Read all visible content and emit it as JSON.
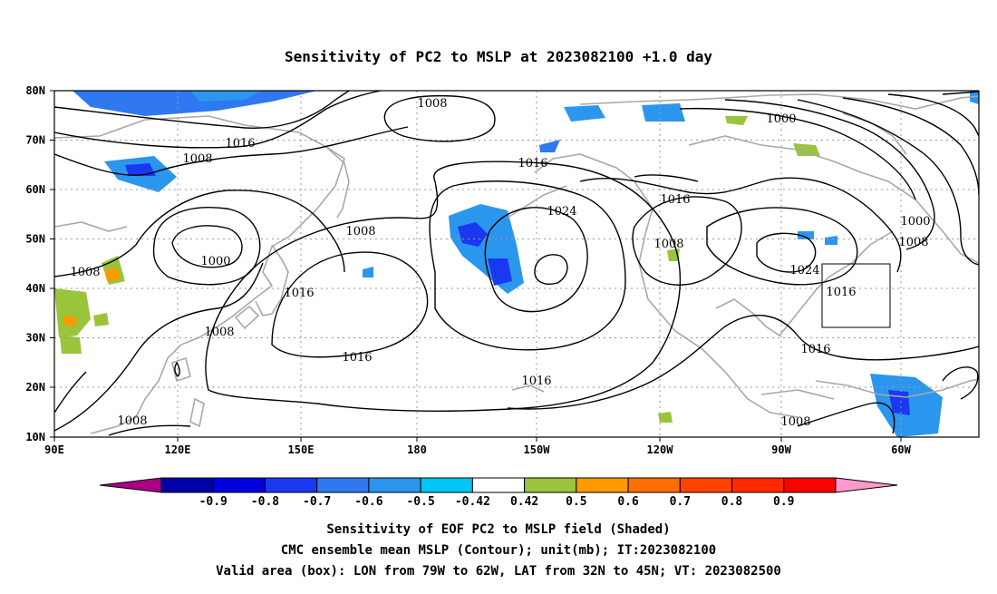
{
  "title": "Sensitivity of PC2 to MSLP at 2023082100 +1.0 day",
  "lat_labels": [
    "80N",
    "70N",
    "60N",
    "50N",
    "40N",
    "30N",
    "20N",
    "10N"
  ],
  "lon_labels": [
    "90E",
    "120E",
    "150E",
    "180",
    "150W",
    "120W",
    "90W",
    "60W"
  ],
  "contour_labels": [
    {
      "text": "1008"
    },
    {
      "text": "1016"
    },
    {
      "text": "1008"
    },
    {
      "text": "1000"
    },
    {
      "text": "1008"
    },
    {
      "text": "1016"
    },
    {
      "text": "1008"
    },
    {
      "text": "1008"
    },
    {
      "text": "1016"
    },
    {
      "text": "1024"
    },
    {
      "text": "1016"
    },
    {
      "text": "1016"
    },
    {
      "text": "1008"
    },
    {
      "text": "1016"
    },
    {
      "text": "1000"
    },
    {
      "text": "1000"
    },
    {
      "text": "1008"
    },
    {
      "text": "1008"
    },
    {
      "text": "1024"
    },
    {
      "text": "1016"
    },
    {
      "text": "1016"
    },
    {
      "text": "1008"
    },
    {
      "text": "1008"
    }
  ],
  "colorbar": {
    "colors": [
      "#aa0088",
      "#0000aa",
      "#0000dd",
      "#1a38f0",
      "#2f78f0",
      "#2a96ee",
      "#00c6f8",
      "#ffffff",
      "#99c43c",
      "#ff9a00",
      "#ff6e00",
      "#ff4400",
      "#ff2a00",
      "#ff0000",
      "#ff99cc"
    ],
    "labels": [
      "-0.9",
      "-0.8",
      "-0.7",
      "-0.6",
      "-0.5",
      "-0.42",
      "0.42",
      "0.5",
      "0.6",
      "0.7",
      "0.8",
      "0.9"
    ]
  },
  "caption": {
    "line1": "Sensitivity of EOF PC2 to MSLP field (Shaded)",
    "line2": "CMC ensemble mean MSLP (Contour); unit(mb); IT:2023082100",
    "line3": "Valid area (box): LON from 79W to 62W, LAT from 32N to 45N; VT: 2023082500"
  }
}
